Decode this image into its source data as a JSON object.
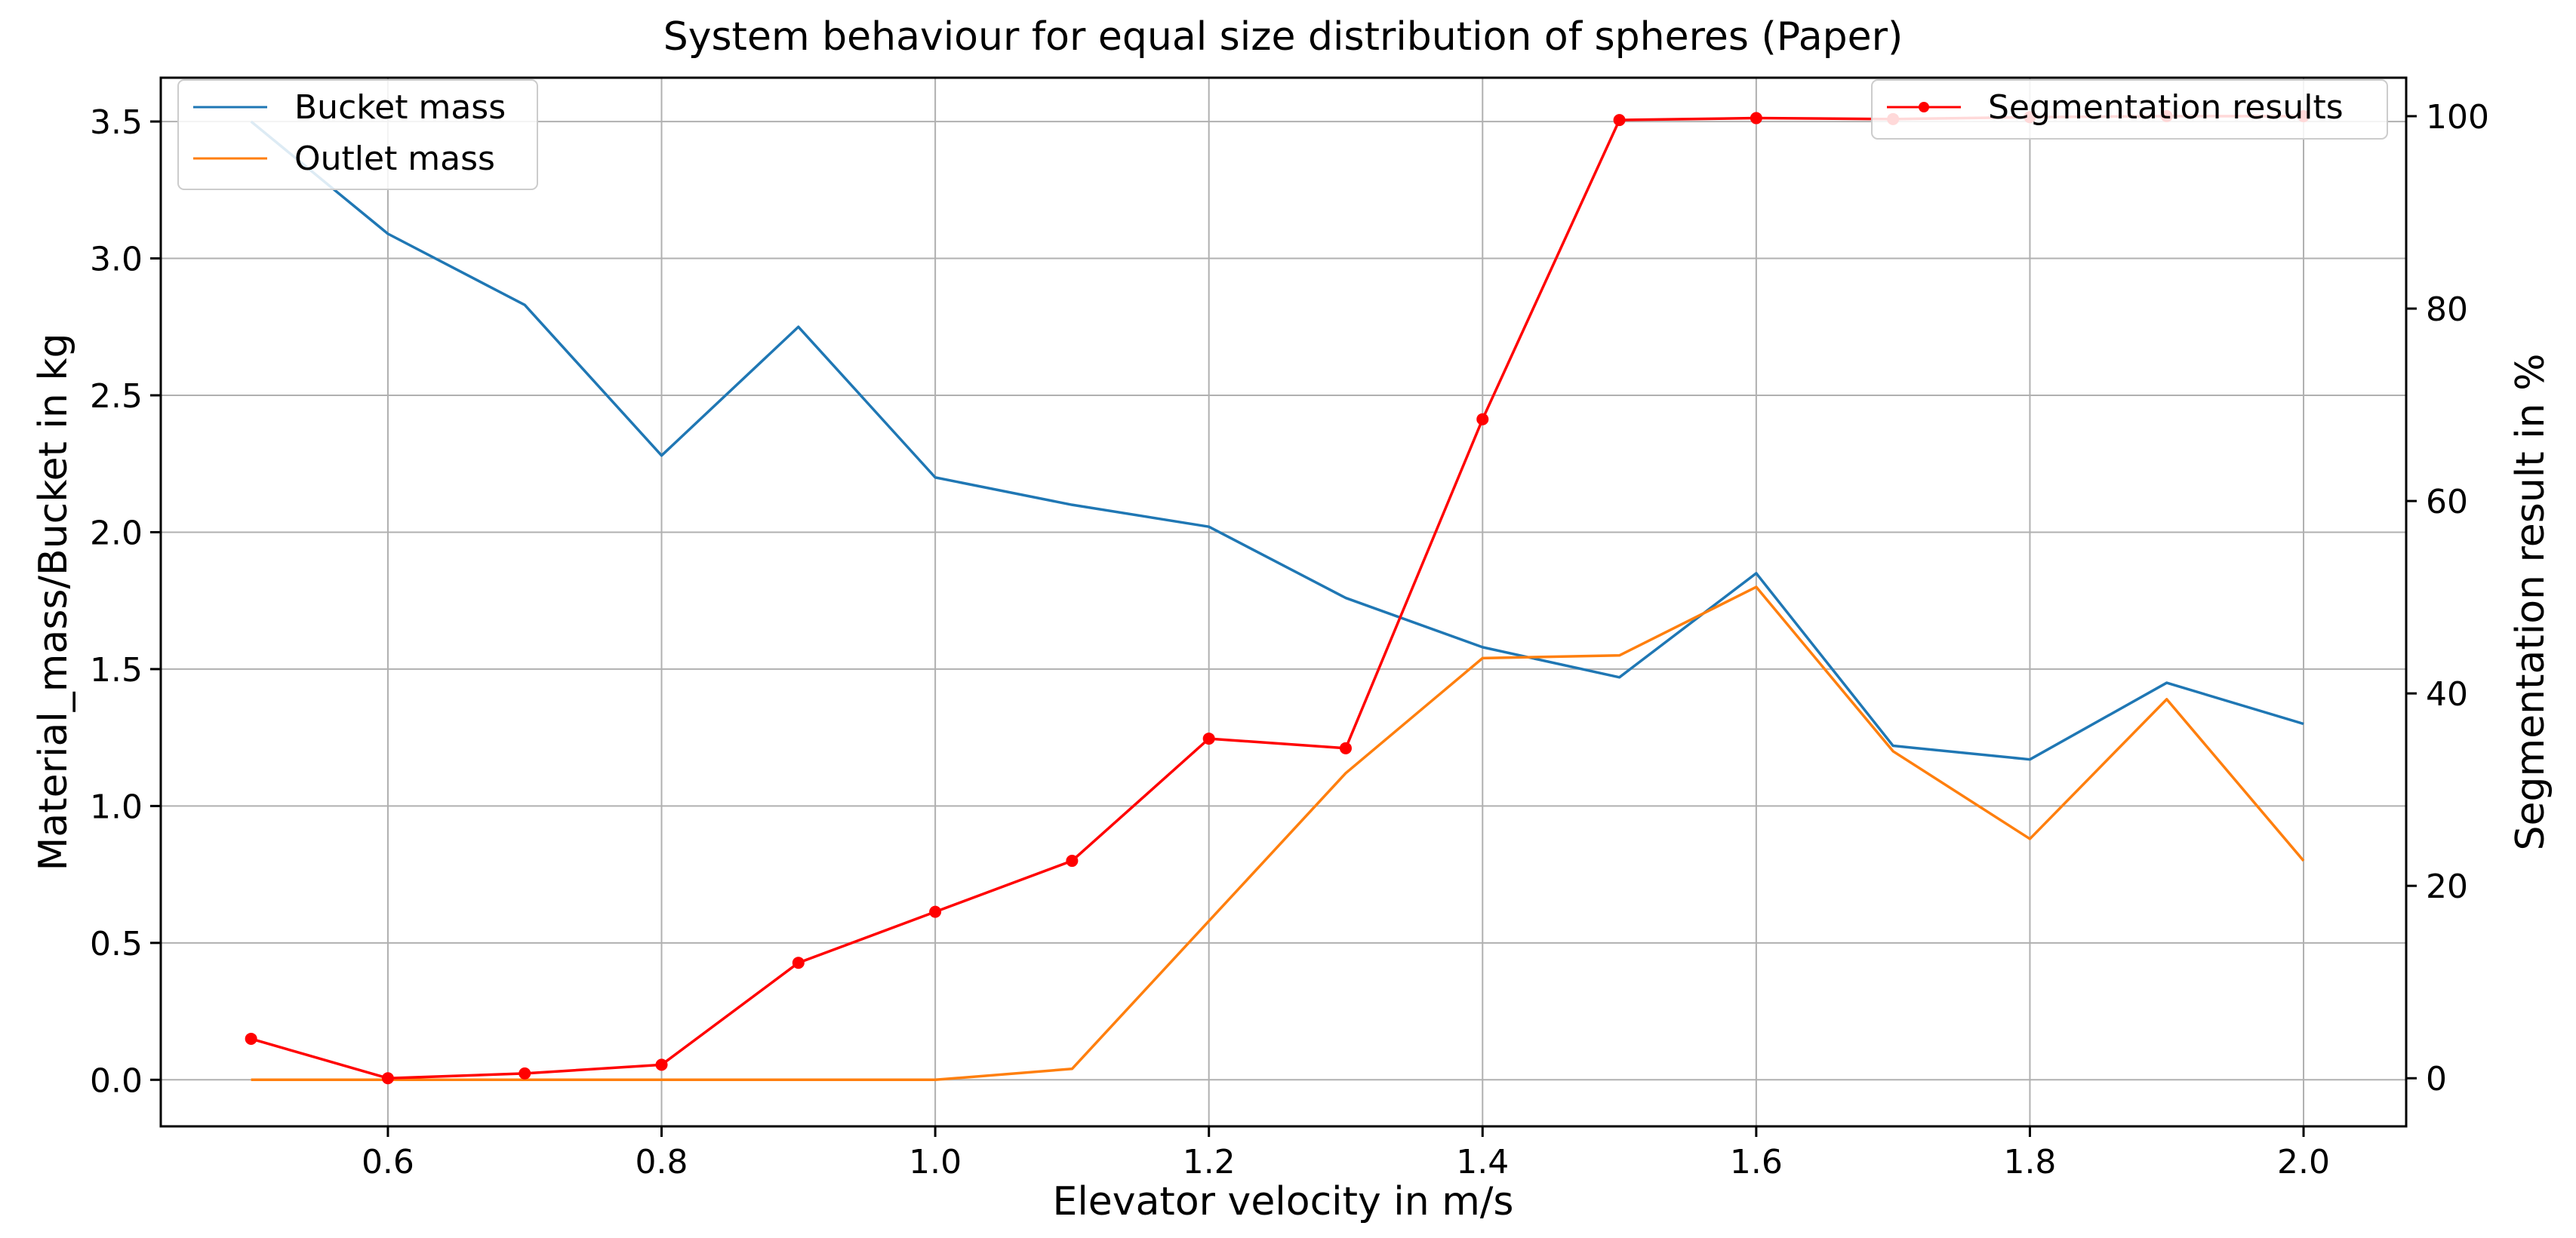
{
  "chart_data": {
    "type": "line",
    "title": "System behaviour for equal size distribution of spheres (Paper)",
    "xlabel": "Elevator velocity in m/s",
    "ylabel": "Material_mass/Bucket in kg",
    "y2label": "Segmentation result in %",
    "xlim": [
      0.434,
      2.075
    ],
    "ylim": [
      -0.17,
      3.66
    ],
    "y2lim": [
      -5,
      104
    ],
    "xticks": [
      "0.6",
      "0.8",
      "1.0",
      "1.2",
      "1.4",
      "1.6",
      "1.8",
      "2.0"
    ],
    "xtick_values": [
      0.6,
      0.8,
      1.0,
      1.2,
      1.4,
      1.6,
      1.8,
      2.0
    ],
    "yticks": [
      "0.0",
      "0.5",
      "1.0",
      "1.5",
      "2.0",
      "2.5",
      "3.0",
      "3.5"
    ],
    "ytick_values": [
      0.0,
      0.5,
      1.0,
      1.5,
      2.0,
      2.5,
      3.0,
      3.5
    ],
    "y2ticks": [
      "0",
      "20",
      "40",
      "60",
      "80",
      "100"
    ],
    "y2tick_values": [
      0,
      20,
      40,
      60,
      80,
      100
    ],
    "grid": true,
    "x": [
      0.5,
      0.6,
      0.7,
      0.8,
      0.9,
      1.0,
      1.1,
      1.2,
      1.3,
      1.4,
      1.5,
      1.6,
      1.7,
      1.8,
      1.9,
      2.0
    ],
    "series": [
      {
        "name": "Bucket mass",
        "axis": "left",
        "color": "#1f77b4",
        "marker": false,
        "values": [
          3.5,
          3.09,
          2.83,
          2.28,
          2.75,
          2.2,
          2.1,
          2.02,
          1.76,
          1.58,
          1.47,
          1.85,
          1.22,
          1.17,
          1.45,
          1.3
        ]
      },
      {
        "name": "Outlet mass",
        "axis": "left",
        "color": "#ff7f0e",
        "marker": false,
        "values": [
          0.0,
          0.0,
          0.0,
          0.0,
          0.0,
          0.0,
          0.04,
          0.58,
          1.12,
          1.54,
          1.55,
          1.8,
          1.2,
          0.88,
          1.39,
          0.8
        ]
      },
      {
        "name": "Segmentation results",
        "axis": "right",
        "color": "#ff0000",
        "marker": true,
        "values": [
          4.1,
          0.0,
          0.5,
          1.4,
          12.0,
          17.3,
          22.6,
          35.3,
          34.3,
          68.5,
          99.6,
          99.8,
          99.7,
          99.9,
          100.0,
          100.0
        ]
      }
    ],
    "legend_left": [
      "Bucket mass",
      "Outlet mass"
    ],
    "legend_right": [
      "Segmentation results"
    ],
    "legend_placement_left": "upper-left",
    "legend_placement_right": "upper-right"
  }
}
